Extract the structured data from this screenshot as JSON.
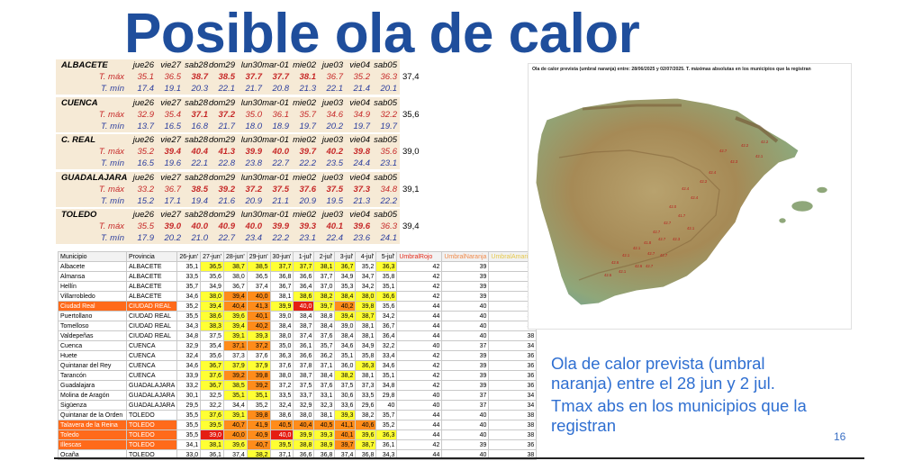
{
  "slide": {
    "title": "Posible ola de calor",
    "text1": "Ola de calor prevista (umbral naranja) entre el 28 jun y 2 jul.",
    "text2": "Tmax abs en los municipios que la registran",
    "page_number": "16"
  },
  "forecast": {
    "max_label": "T. máx",
    "min_label": "T. mín",
    "cities": [
      {
        "name": "ALBACETE",
        "days": [
          "jue26",
          "vie27",
          "sab28",
          "dom29",
          "lun30",
          "mar-01",
          "mie02",
          "jue03",
          "vie04",
          "sab05"
        ],
        "max": [
          "35.1",
          "36.5",
          "38.7",
          "38.5",
          "37.7",
          "37.7",
          "38.1",
          "36.7",
          "35.2",
          "36.3"
        ],
        "min": [
          "17.4",
          "19.1",
          "20.3",
          "22.1",
          "21.7",
          "20.8",
          "21.3",
          "22.1",
          "21.4",
          "20.1"
        ],
        "abs": "37,4"
      },
      {
        "name": "CUENCA",
        "days": [
          "jue26",
          "vie27",
          "sab28",
          "dom29",
          "lun30",
          "mar-01",
          "mie02",
          "jue03",
          "vie04",
          "sab05"
        ],
        "max": [
          "32.9",
          "35.4",
          "37.1",
          "37.2",
          "35.0",
          "36.1",
          "35.7",
          "34.6",
          "34.9",
          "32.2"
        ],
        "min": [
          "13.7",
          "16.5",
          "16.8",
          "21.7",
          "18.0",
          "18.9",
          "19.7",
          "20.2",
          "19.7",
          "19.7"
        ],
        "abs": "35,6"
      },
      {
        "name": "C. REAL",
        "days": [
          "jue26",
          "vie27",
          "sab28",
          "dom29",
          "lun30",
          "mar-01",
          "mie02",
          "jue03",
          "vie04",
          "sab05"
        ],
        "max": [
          "35.2",
          "39.4",
          "40.4",
          "41.3",
          "39.9",
          "40.0",
          "39.7",
          "40.2",
          "39.8",
          "35.6"
        ],
        "min": [
          "16.5",
          "19.6",
          "22.1",
          "22.8",
          "23.8",
          "22.7",
          "22.2",
          "23.5",
          "24.4",
          "23.1"
        ],
        "abs": "39,0"
      },
      {
        "name": "GUADALAJARA",
        "days": [
          "jue26",
          "vie27",
          "sab28",
          "dom29",
          "lun30",
          "mar-01",
          "mie02",
          "jue03",
          "vie04",
          "sab05"
        ],
        "max": [
          "33.2",
          "36.7",
          "38.5",
          "39.2",
          "37.2",
          "37.5",
          "37.6",
          "37.5",
          "37.3",
          "34.8"
        ],
        "min": [
          "15.2",
          "17.1",
          "19.4",
          "21.6",
          "20.9",
          "21.1",
          "20.9",
          "19.5",
          "21.3",
          "22.2"
        ],
        "abs": "39,1"
      },
      {
        "name": "TOLEDO",
        "days": [
          "jue26",
          "vie27",
          "sab28",
          "dom29",
          "lun30",
          "mar-01",
          "mie02",
          "jue03",
          "vie04",
          "sab05"
        ],
        "max": [
          "35.5",
          "39.0",
          "40.0",
          "40.9",
          "40.0",
          "39.9",
          "39.3",
          "40.1",
          "39.6",
          "36.3"
        ],
        "min": [
          "17.9",
          "20.2",
          "21.0",
          "22.7",
          "23.4",
          "22.2",
          "23.1",
          "22.4",
          "23.6",
          "24.1"
        ],
        "abs": "39,4"
      }
    ]
  },
  "table": {
    "headers": [
      "Municipio",
      "Provincia",
      "26-jun'",
      "27-jun'",
      "28-jun'",
      "29-jun'",
      "30-jun'",
      "1-jul'",
      "2-jul'",
      "3-jul'",
      "4-jul'",
      "5-jul'",
      "UmbralRojo",
      "UmbralNaranja",
      "UmbralAmarillo"
    ],
    "rows": [
      {
        "m": "Albacete",
        "p": "ALBACETE",
        "d": [
          "35,1",
          "36,5",
          "38,7",
          "38,5",
          "37,7",
          "37,7",
          "38,1",
          "36,7",
          "35,2",
          "36,3"
        ],
        "c": [
          "",
          "y",
          "y",
          "y",
          "y",
          "y",
          "y",
          "y",
          "",
          "y"
        ],
        "u": [
          "42",
          "39",
          "36"
        ],
        "hl": false
      },
      {
        "m": "Almansa",
        "p": "ALBACETE",
        "d": [
          "33,5",
          "35,6",
          "38,0",
          "36,5",
          "36,8",
          "36,6",
          "37,7",
          "34,9",
          "34,7",
          "35,8"
        ],
        "c": [
          "",
          "",
          "",
          "",
          "",
          "",
          "",
          "",
          "",
          ""
        ],
        "u": [
          "42",
          "39",
          "36"
        ],
        "hl": false
      },
      {
        "m": "Hellín",
        "p": "ALBACETE",
        "d": [
          "35,7",
          "34,9",
          "36,7",
          "37,4",
          "36,7",
          "36,4",
          "37,0",
          "35,3",
          "34,2",
          "35,1"
        ],
        "c": [
          "",
          "",
          "",
          "",
          "",
          "",
          "",
          "",
          "",
          ""
        ],
        "u": [
          "42",
          "39",
          "36"
        ],
        "hl": false
      },
      {
        "m": "Villarrobledo",
        "p": "ALBACETE",
        "d": [
          "34,6",
          "38,0",
          "39,4",
          "40,0",
          "38,1",
          "38,6",
          "38,2",
          "38,4",
          "38,0",
          "36,6"
        ],
        "c": [
          "",
          "y",
          "o",
          "o",
          "",
          "y",
          "y",
          "y",
          "y",
          "y"
        ],
        "u": [
          "42",
          "39",
          "36"
        ],
        "hl": false
      },
      {
        "m": "Ciudad Real",
        "p": "CIUDAD REAL",
        "d": [
          "35,2",
          "39,4",
          "40,4",
          "41,3",
          "39,9",
          "40,0",
          "39,7",
          "40,2",
          "39,8",
          "35,6"
        ],
        "c": [
          "",
          "y",
          "o",
          "o",
          "y",
          "r",
          "y",
          "o",
          "y",
          ""
        ],
        "u": [
          "44",
          "40",
          "38"
        ],
        "hl": true
      },
      {
        "m": "Puertollano",
        "p": "CIUDAD REAL",
        "d": [
          "35,5",
          "38,6",
          "39,6",
          "40,1",
          "39,0",
          "38,4",
          "38,8",
          "39,4",
          "38,7",
          "34,2"
        ],
        "c": [
          "",
          "y",
          "y",
          "o",
          "",
          "",
          "",
          "y",
          "y",
          ""
        ],
        "u": [
          "44",
          "40",
          "38"
        ],
        "hl": false
      },
      {
        "m": "Tomelloso",
        "p": "CIUDAD REAL",
        "d": [
          "34,3",
          "38,3",
          "39,4",
          "40,2",
          "38,4",
          "38,7",
          "38,4",
          "39,0",
          "38,1",
          "36,7"
        ],
        "c": [
          "",
          "y",
          "y",
          "o",
          "",
          "",
          "",
          "",
          "",
          ""
        ],
        "u": [
          "44",
          "40",
          "38"
        ],
        "hl": false
      },
      {
        "m": "Valdepeñas",
        "p": "CIUDAD REAL",
        "d": [
          "34,8",
          "37,5",
          "39,1",
          "39,3",
          "38,0",
          "37,4",
          "37,6",
          "38,4",
          "38,1",
          "36,4"
        ],
        "c": [
          "",
          "",
          "y",
          "y",
          "",
          "",
          "",
          "",
          "",
          ""
        ],
        "u": [
          "44",
          "40",
          "38"
        ],
        "hl": false
      },
      {
        "m": "Cuenca",
        "p": "CUENCA",
        "d": [
          "32,9",
          "35,4",
          "37,1",
          "37,2",
          "35,0",
          "36,1",
          "35,7",
          "34,6",
          "34,9",
          "32,2"
        ],
        "c": [
          "",
          "",
          "o",
          "o",
          "",
          "",
          "",
          "",
          "",
          ""
        ],
        "u": [
          "40",
          "37",
          "34"
        ],
        "hl": false
      },
      {
        "m": "Huete",
        "p": "CUENCA",
        "d": [
          "32,4",
          "35,6",
          "37,3",
          "37,6",
          "36,3",
          "36,6",
          "36,2",
          "35,1",
          "35,8",
          "33,4"
        ],
        "c": [
          "",
          "",
          "",
          "",
          "",
          "",
          "",
          "",
          "",
          ""
        ],
        "u": [
          "42",
          "39",
          "36"
        ],
        "hl": false
      },
      {
        "m": "Quintanar del Rey",
        "p": "CUENCA",
        "d": [
          "34,6",
          "36,7",
          "37,9",
          "37,9",
          "37,6",
          "37,8",
          "37,1",
          "36,0",
          "36,3",
          "34,6"
        ],
        "c": [
          "",
          "y",
          "y",
          "y",
          "",
          "",
          "",
          "",
          "y",
          ""
        ],
        "u": [
          "42",
          "39",
          "36"
        ],
        "hl": false
      },
      {
        "m": "Tarancón",
        "p": "CUENCA",
        "d": [
          "33,9",
          "37,6",
          "39,2",
          "39,8",
          "38,0",
          "38,7",
          "38,4",
          "38,2",
          "38,1",
          "35,1"
        ],
        "c": [
          "",
          "y",
          "o",
          "o",
          "",
          "",
          "",
          "y",
          "",
          ""
        ],
        "u": [
          "42",
          "39",
          "36"
        ],
        "hl": false
      },
      {
        "m": "Guadalajara",
        "p": "GUADALAJARA",
        "d": [
          "33,2",
          "36,7",
          "38,5",
          "39,2",
          "37,2",
          "37,5",
          "37,6",
          "37,5",
          "37,3",
          "34,8"
        ],
        "c": [
          "",
          "y",
          "y",
          "o",
          "",
          "",
          "",
          "",
          "",
          ""
        ],
        "u": [
          "42",
          "39",
          "36"
        ],
        "hl": false
      },
      {
        "m": "Molina de Aragón",
        "p": "GUADALAJARA",
        "d": [
          "30,1",
          "32,5",
          "35,1",
          "35,1",
          "33,5",
          "33,7",
          "33,1",
          "30,6",
          "33,5",
          "29,8"
        ],
        "c": [
          "",
          "",
          "y",
          "y",
          "",
          "",
          "",
          "",
          "",
          ""
        ],
        "u": [
          "40",
          "37",
          "34"
        ],
        "hl": false
      },
      {
        "m": "Sigüenza",
        "p": "GUADALAJARA",
        "d": [
          "29,5",
          "32,2",
          "34,4",
          "35,2",
          "32,4",
          "32,9",
          "32,3",
          "33,6",
          "29,6",
          "40"
        ],
        "c": [
          "",
          "",
          "",
          "",
          "",
          "",
          "",
          "",
          "",
          ""
        ],
        "u": [
          "40",
          "37",
          "34"
        ],
        "hl": false
      },
      {
        "m": "Quintanar de la Orden",
        "p": "TOLEDO",
        "d": [
          "35,5",
          "37,6",
          "39,1",
          "39,8",
          "38,6",
          "38,0",
          "38,1",
          "39,3",
          "38,2",
          "35,7"
        ],
        "c": [
          "",
          "y",
          "y",
          "o",
          "",
          "",
          "",
          "y",
          "",
          ""
        ],
        "u": [
          "44",
          "40",
          "38"
        ],
        "hl": false
      },
      {
        "m": "Talavera de la Reina",
        "p": "TOLEDO",
        "d": [
          "35,5",
          "39,5",
          "40,7",
          "41,9",
          "40,5",
          "40,4",
          "40,5",
          "41,1",
          "40,6",
          "35,2"
        ],
        "c": [
          "",
          "y",
          "o",
          "o",
          "o",
          "o",
          "o",
          "o",
          "o",
          ""
        ],
        "u": [
          "44",
          "40",
          "38"
        ],
        "hl": true
      },
      {
        "m": "Toledo",
        "p": "TOLEDO",
        "d": [
          "35,5",
          "39,0",
          "40,0",
          "40,9",
          "40,0",
          "39,9",
          "39,3",
          "40,1",
          "39,6",
          "36,3"
        ],
        "c": [
          "",
          "r",
          "o",
          "o",
          "r",
          "y",
          "y",
          "o",
          "y",
          "y"
        ],
        "u": [
          "44",
          "40",
          "38"
        ],
        "hl": true
      },
      {
        "m": "Illescas",
        "p": "TOLEDO",
        "d": [
          "34,1",
          "38,1",
          "39,6",
          "40,7",
          "39,5",
          "38,8",
          "38,9",
          "39,7",
          "38,7",
          "36,1"
        ],
        "c": [
          "",
          "y",
          "y",
          "o",
          "y",
          "y",
          "y",
          "o",
          "y",
          ""
        ],
        "u": [
          "42",
          "39",
          "36"
        ],
        "hl": true
      },
      {
        "m": "Ocaña",
        "p": "TOLEDO",
        "d": [
          "33,0",
          "36,1",
          "37,4",
          "38,2",
          "37,1",
          "36,6",
          "36,8",
          "37,4",
          "36,8",
          "34,3"
        ],
        "c": [
          "",
          "",
          "",
          "y",
          "",
          "",
          "",
          "",
          "",
          ""
        ],
        "u": [
          "44",
          "40",
          "38"
        ],
        "hl": false
      }
    ]
  },
  "map": {
    "caption": "Ola de calor prevista (umbral naranja) entre: 28/06/2025 y 02/07/2025. T. máximas absolutas en los municipios que la registran",
    "labels": [
      "42.7",
      "42.2",
      "42.2",
      "42.3",
      "42.1",
      "42.4",
      "41.7",
      "42.7",
      "42.7",
      "41.8",
      "42.1",
      "42.1",
      "42.6",
      "42.0",
      "42.4",
      "42.2",
      "42.4",
      "42.7",
      "42.7",
      "42.6",
      "42.1",
      "42.5",
      "42.1",
      "42.3",
      "42.7",
      "42.7"
    ]
  },
  "colors": {
    "title": "#1f4e9c",
    "text": "#2f6fd1",
    "yellow": "#ffff33",
    "orange": "#ff8c1a",
    "red": "#e51d12"
  }
}
